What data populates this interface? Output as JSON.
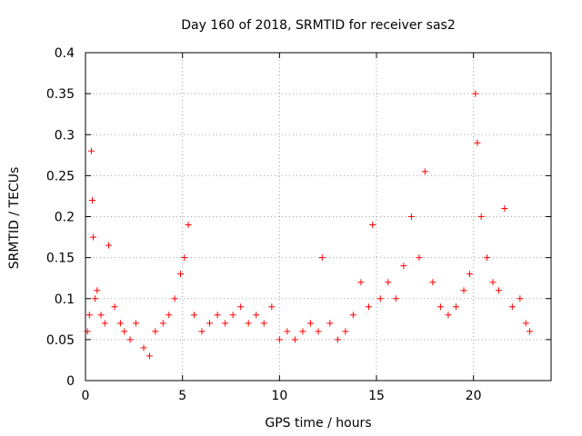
{
  "chart_data": {
    "type": "scatter",
    "title": "Day 160 of 2018, SRMTID for receiver sas2",
    "xlabel": "GPS time / hours",
    "ylabel": "SRMTID / TECUs",
    "xlim": [
      0,
      24
    ],
    "ylim": [
      0,
      0.4
    ],
    "xticks": [
      0,
      5,
      10,
      15,
      20
    ],
    "yticks": [
      0,
      0.05,
      0.1,
      0.15,
      0.2,
      0.25,
      0.3,
      0.35,
      0.4
    ],
    "ytick_labels": [
      "0",
      "0.05",
      "0.1",
      "0.15",
      "0.2",
      "0.25",
      "0.3",
      "0.35",
      "0.4"
    ],
    "xtick_labels": [
      "0",
      "5",
      "10",
      "15",
      "20"
    ],
    "grid": true,
    "marker": "+",
    "color": "#ff0000",
    "series": [
      {
        "name": "SRMTID",
        "x": [
          0.1,
          0.2,
          0.3,
          0.35,
          0.4,
          0.5,
          0.6,
          0.8,
          1.0,
          1.2,
          1.5,
          1.8,
          2.0,
          2.3,
          2.6,
          3.0,
          3.3,
          3.6,
          4.0,
          4.3,
          4.6,
          4.9,
          5.1,
          5.3,
          5.6,
          6.0,
          6.4,
          6.8,
          7.2,
          7.6,
          8.0,
          8.4,
          8.8,
          9.2,
          9.6,
          10.0,
          10.4,
          10.8,
          11.2,
          11.6,
          12.0,
          12.2,
          12.6,
          13.0,
          13.4,
          13.8,
          14.2,
          14.6,
          14.8,
          15.2,
          15.6,
          16.0,
          16.4,
          16.8,
          17.2,
          17.5,
          17.9,
          18.3,
          18.7,
          19.1,
          19.5,
          19.8,
          20.1,
          20.2,
          20.4,
          20.7,
          21.0,
          21.3,
          21.6,
          22.0,
          22.4,
          22.7,
          22.9
        ],
        "y": [
          0.06,
          0.08,
          0.28,
          0.22,
          0.175,
          0.1,
          0.11,
          0.08,
          0.07,
          0.165,
          0.09,
          0.07,
          0.06,
          0.05,
          0.07,
          0.04,
          0.03,
          0.06,
          0.07,
          0.08,
          0.1,
          0.13,
          0.15,
          0.19,
          0.08,
          0.06,
          0.07,
          0.08,
          0.07,
          0.08,
          0.09,
          0.07,
          0.08,
          0.07,
          0.09,
          0.05,
          0.06,
          0.05,
          0.06,
          0.07,
          0.06,
          0.15,
          0.07,
          0.05,
          0.06,
          0.08,
          0.12,
          0.09,
          0.19,
          0.1,
          0.12,
          0.1,
          0.14,
          0.2,
          0.15,
          0.255,
          0.12,
          0.09,
          0.08,
          0.09,
          0.11,
          0.13,
          0.35,
          0.29,
          0.2,
          0.15,
          0.12,
          0.11,
          0.21,
          0.09,
          0.1,
          0.07,
          0.06
        ]
      }
    ]
  }
}
